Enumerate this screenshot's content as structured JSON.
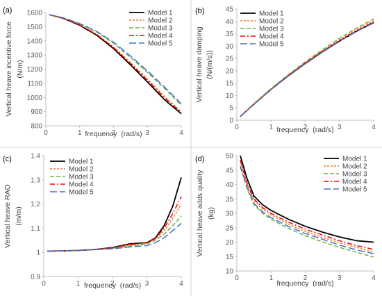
{
  "chart_data": [
    {
      "type": "line",
      "panel_label": "(a)",
      "xlabel": "frequency  (rad/s)",
      "ylabel": "Vertical heave incentive force",
      "yunit": "(N/m)",
      "xlim": [
        0,
        4
      ],
      "ylim": [
        800,
        1600
      ],
      "xticks": [
        0,
        1,
        2,
        3,
        4
      ],
      "yticks": [
        800,
        900,
        1000,
        1100,
        1200,
        1300,
        1400,
        1500,
        1600
      ],
      "grid": false,
      "legend": "top-right",
      "x": [
        0.1,
        0.5,
        1.0,
        1.5,
        2.0,
        2.5,
        3.0,
        3.5,
        4.0
      ],
      "series": [
        {
          "name": "Model 1",
          "color": "#000000",
          "dash": "solid",
          "values": [
            1585,
            1560,
            1510,
            1440,
            1345,
            1230,
            1110,
            985,
            885
          ]
        },
        {
          "name": "Model 2",
          "color": "#ED7D31",
          "dash": "short",
          "values": [
            1585,
            1561,
            1513,
            1447,
            1357,
            1247,
            1130,
            1008,
            900
          ]
        },
        {
          "name": "Model 3",
          "color": "#70AD47",
          "dash": "long",
          "values": [
            1585,
            1563,
            1520,
            1463,
            1383,
            1283,
            1177,
            1065,
            945
          ]
        },
        {
          "name": "Model 4",
          "color": "#FF0000",
          "dash": "dashdot",
          "values": [
            1585,
            1561,
            1512,
            1445,
            1352,
            1240,
            1122,
            998,
            895
          ]
        },
        {
          "name": "Model 5",
          "color": "#4472C4",
          "dash": "longdash",
          "values": [
            1585,
            1564,
            1522,
            1467,
            1390,
            1293,
            1188,
            1075,
            955
          ]
        }
      ]
    },
    {
      "type": "line",
      "panel_label": "(b)",
      "xlabel": "frequency  (rad/s)",
      "ylabel": "Vertical heave damping",
      "yunit": "(N/(m/s))",
      "xlim": [
        0,
        4
      ],
      "ylim": [
        0,
        45
      ],
      "xticks": [
        0,
        1,
        2,
        3,
        4
      ],
      "yticks": [
        0,
        5,
        10,
        15,
        20,
        25,
        30,
        35,
        40,
        45
      ],
      "grid": false,
      "legend": "top-left",
      "x": [
        0.1,
        0.5,
        1.0,
        1.5,
        2.0,
        2.5,
        3.0,
        3.5,
        4.0
      ],
      "series": [
        {
          "name": "Model 1",
          "color": "#000000",
          "dash": "solid",
          "values": [
            1.5,
            6.5,
            12.5,
            18.0,
            23.0,
            27.7,
            32.0,
            36.0,
            39.5
          ]
        },
        {
          "name": "Model 2",
          "color": "#ED7D31",
          "dash": "short",
          "values": [
            1.5,
            6.6,
            12.6,
            18.2,
            23.3,
            28.1,
            32.5,
            36.7,
            40.3
          ]
        },
        {
          "name": "Model 3",
          "color": "#70AD47",
          "dash": "long",
          "values": [
            1.5,
            6.7,
            12.8,
            18.4,
            23.6,
            28.5,
            33.1,
            37.3,
            41.0
          ]
        },
        {
          "name": "Model 4",
          "color": "#FF0000",
          "dash": "dashdot",
          "values": [
            1.5,
            6.5,
            12.5,
            18.0,
            23.1,
            27.8,
            32.2,
            36.2,
            39.8
          ]
        },
        {
          "name": "Model 5",
          "color": "#4472C4",
          "dash": "longdash",
          "values": [
            1.5,
            6.4,
            12.4,
            17.8,
            22.8,
            27.5,
            31.9,
            35.9,
            39.4
          ]
        }
      ]
    },
    {
      "type": "line",
      "panel_label": "(c)",
      "xlabel": "frequency  (rad/s)",
      "ylabel": "Vertical heave RAO",
      "yunit": "(m/m)",
      "xlim": [
        0,
        4
      ],
      "ylim": [
        0.9,
        1.4
      ],
      "xticks": [
        0,
        1,
        2,
        3,
        4
      ],
      "yticks": [
        0.9,
        1.0,
        1.1,
        1.2,
        1.3,
        1.4
      ],
      "yticklabels": [
        "0.9",
        "1",
        "1.1",
        "1.2",
        "1.3",
        "1.4"
      ],
      "grid": false,
      "legend": "top-left",
      "x": [
        0.1,
        0.5,
        1.0,
        1.5,
        2.0,
        2.5,
        2.75,
        3.0,
        3.25,
        3.5,
        3.75,
        4.0
      ],
      "series": [
        {
          "name": "Model 1",
          "color": "#000000",
          "dash": "solid",
          "values": [
            1.005,
            1.006,
            1.008,
            1.012,
            1.02,
            1.035,
            1.038,
            1.04,
            1.06,
            1.11,
            1.19,
            1.31
          ]
        },
        {
          "name": "Model 2",
          "color": "#ED7D31",
          "dash": "short",
          "values": [
            1.005,
            1.006,
            1.008,
            1.012,
            1.018,
            1.03,
            1.034,
            1.038,
            1.055,
            1.09,
            1.14,
            1.2
          ]
        },
        {
          "name": "Model 3",
          "color": "#70AD47",
          "dash": "long",
          "values": [
            1.005,
            1.006,
            1.008,
            1.011,
            1.016,
            1.026,
            1.03,
            1.035,
            1.05,
            1.075,
            1.11,
            1.15
          ]
        },
        {
          "name": "Model 4",
          "color": "#FF0000",
          "dash": "dashdot",
          "values": [
            1.005,
            1.006,
            1.008,
            1.012,
            1.019,
            1.032,
            1.036,
            1.04,
            1.058,
            1.1,
            1.16,
            1.23
          ]
        },
        {
          "name": "Model 5",
          "color": "#4472C4",
          "dash": "longdash",
          "values": [
            1.005,
            1.006,
            1.008,
            1.011,
            1.015,
            1.022,
            1.025,
            1.028,
            1.04,
            1.06,
            1.09,
            1.12
          ]
        }
      ]
    },
    {
      "type": "line",
      "panel_label": "(d)",
      "xlabel": "frequency  (rad/s)",
      "ylabel": "Vertical heave adds quality",
      "yunit": "(kg)",
      "xlim": [
        0,
        4
      ],
      "ylim": [
        10,
        50
      ],
      "xticks": [
        0,
        1,
        2,
        3,
        4
      ],
      "yticks": [
        10,
        15,
        20,
        25,
        30,
        35,
        40,
        45,
        50
      ],
      "grid": false,
      "legend": "top-right",
      "x": [
        0.1,
        0.3,
        0.5,
        0.75,
        1.0,
        1.5,
        2.0,
        2.5,
        3.0,
        3.5,
        4.0
      ],
      "series": [
        {
          "name": "Model 1",
          "color": "#000000",
          "dash": "solid",
          "values": [
            50,
            42,
            36,
            33,
            31,
            28,
            25.5,
            23.5,
            21.8,
            20.5,
            20
          ]
        },
        {
          "name": "Model 2",
          "color": "#ED7D31",
          "dash": "short",
          "values": [
            48,
            40,
            34.5,
            31.5,
            29.5,
            26.3,
            23.7,
            21.6,
            19.8,
            18.2,
            16.5
          ]
        },
        {
          "name": "Model 3",
          "color": "#70AD47",
          "dash": "long",
          "values": [
            46,
            38.5,
            33,
            30,
            28,
            24.8,
            22.2,
            20.1,
            18.2,
            16.5,
            14.8
          ]
        },
        {
          "name": "Model 4",
          "color": "#FF0000",
          "dash": "dashdot",
          "values": [
            48.5,
            40.5,
            35,
            32,
            30,
            27,
            24.5,
            22.5,
            20.5,
            18.8,
            17.5
          ]
        },
        {
          "name": "Model 5",
          "color": "#4472C4",
          "dash": "longdash",
          "values": [
            46.5,
            39,
            33.5,
            30.5,
            28.5,
            25.5,
            23,
            21,
            19,
            17.3,
            16
          ]
        }
      ]
    }
  ]
}
